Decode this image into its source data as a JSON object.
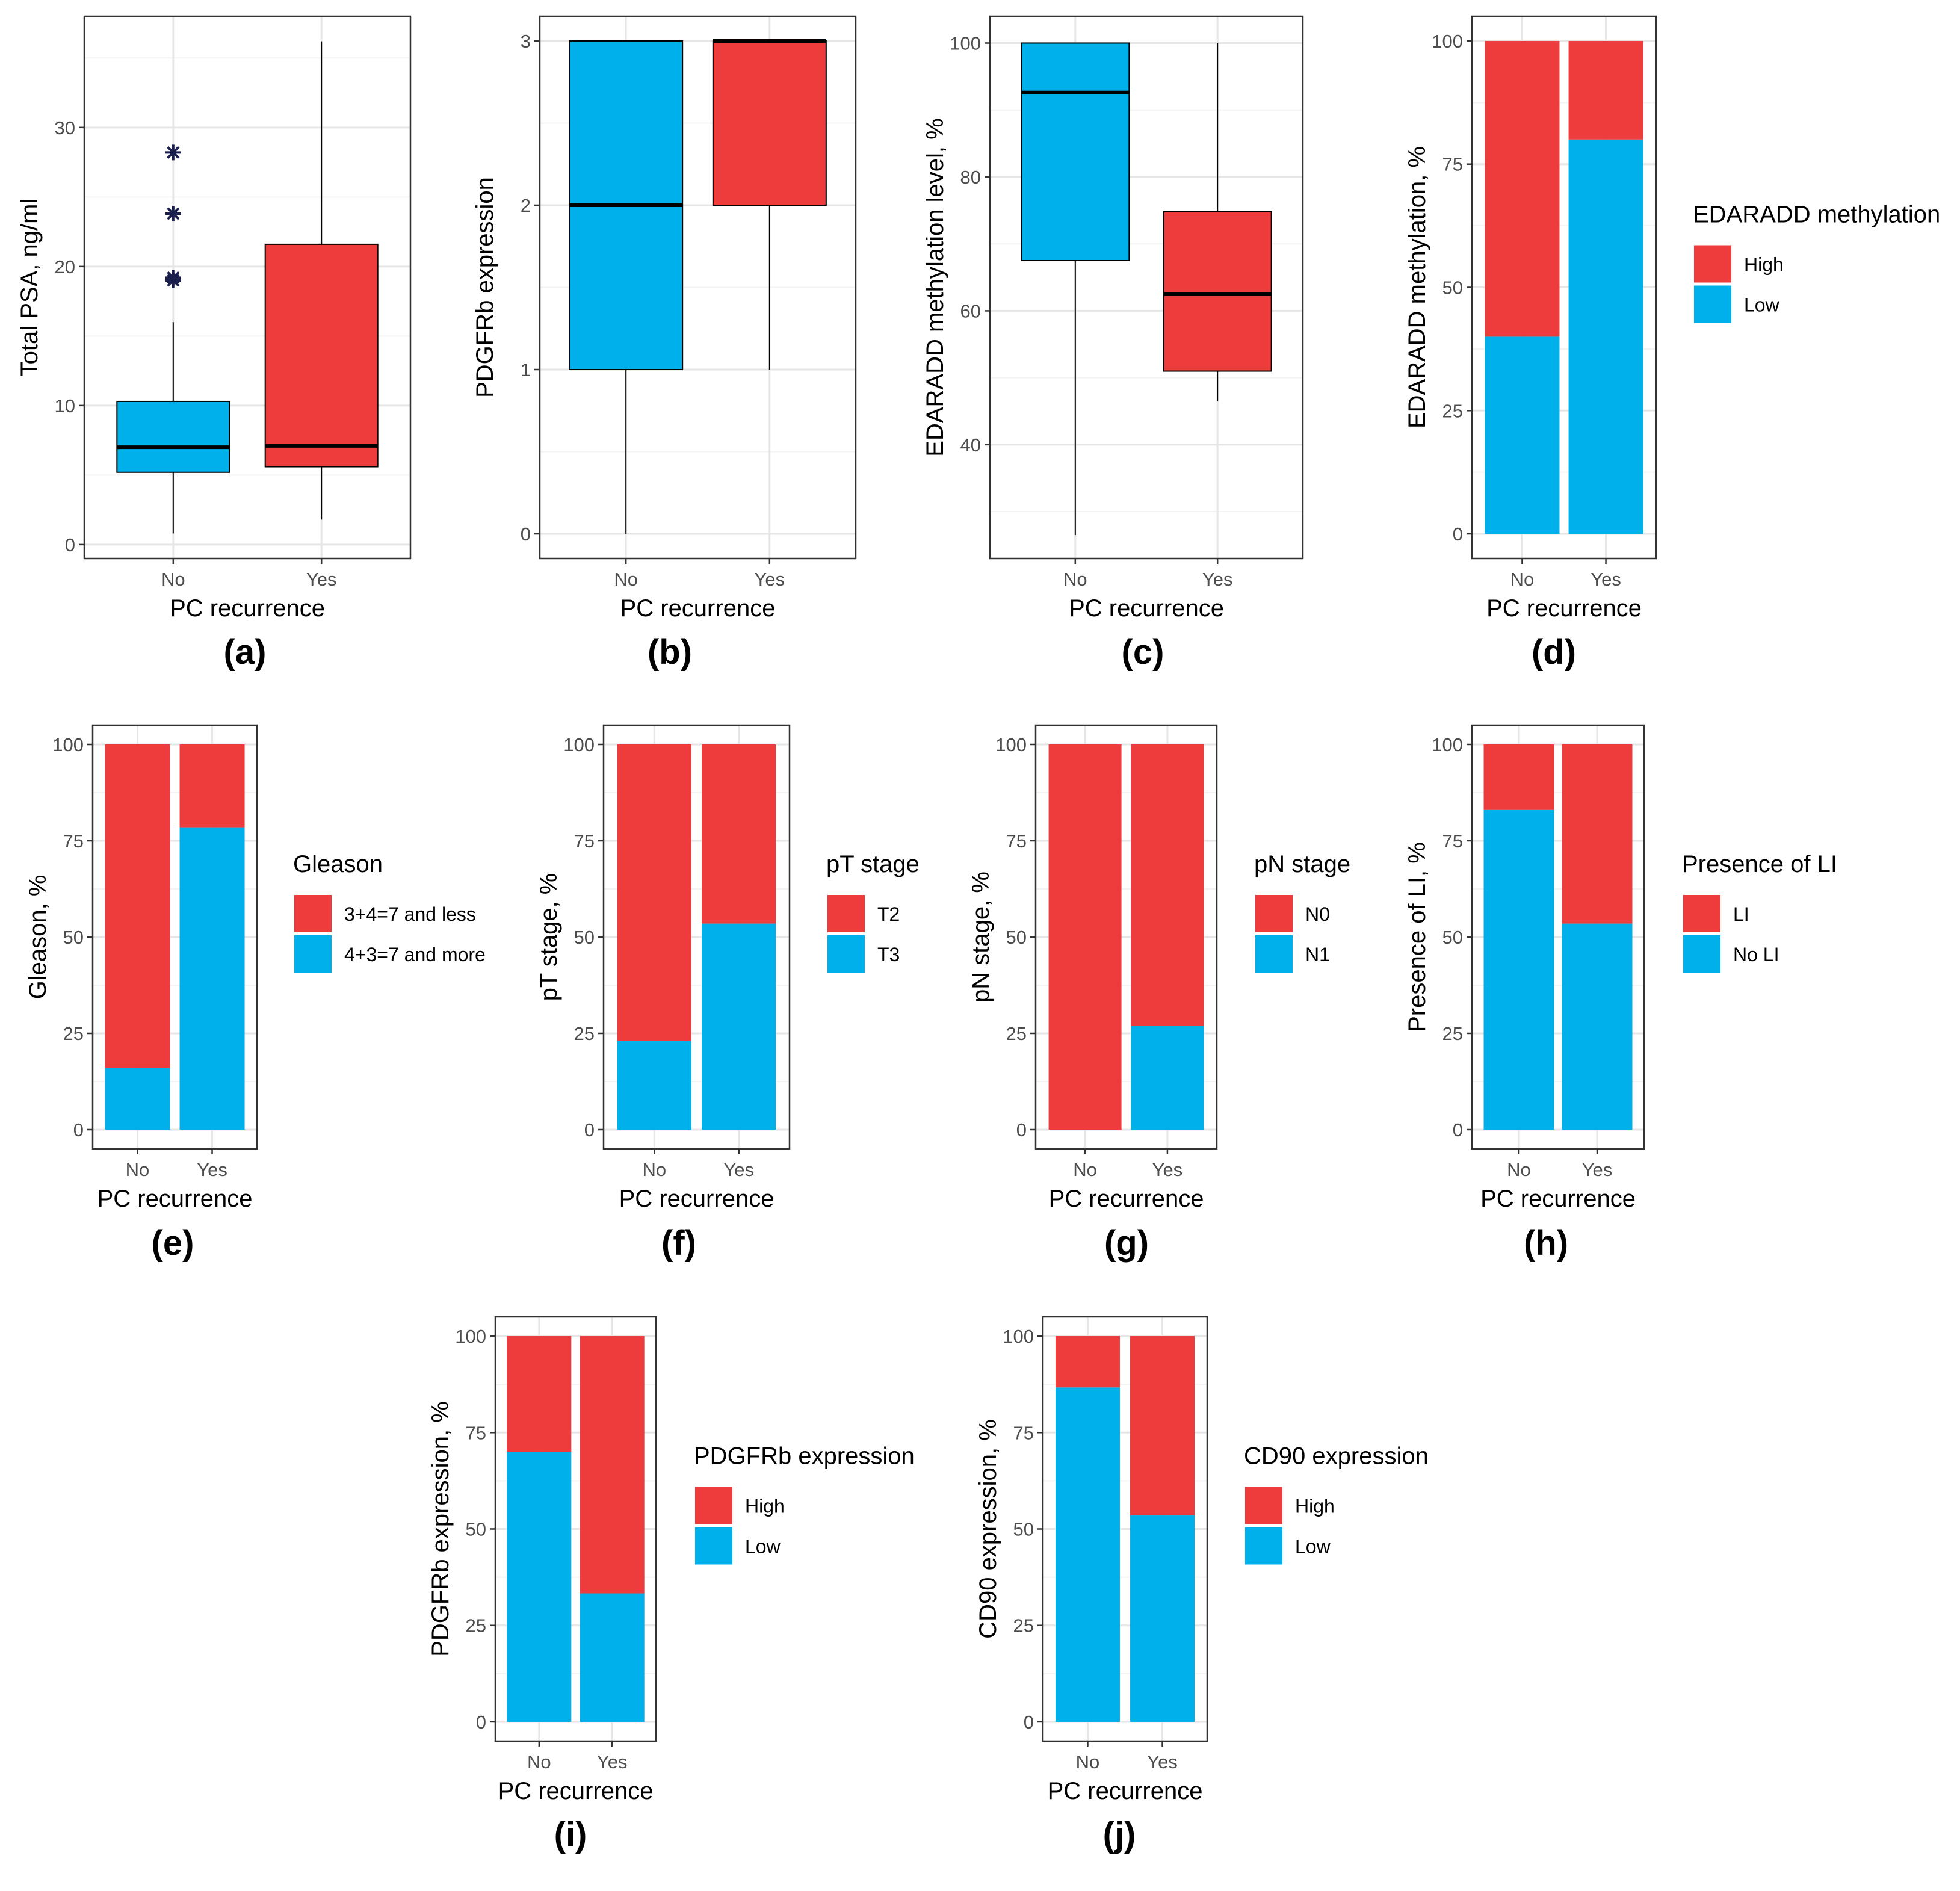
{
  "figure": {
    "categories": [
      "No",
      "Yes"
    ],
    "colors": {
      "high": "#EE3B3B",
      "low": "#00B0EB",
      "box_outline": "#000000",
      "grid_major": "#E6E6E6",
      "grid_minor": "#F3F3F3",
      "panel_border": "#333333",
      "outlier": "#1B1F4E"
    }
  },
  "chart_data": [
    {
      "id": "a",
      "panel_label": "(a)",
      "type": "boxplot",
      "xlabel": "PC recurrence",
      "ylabel": "Total PSA, ng/ml",
      "categories": [
        "No",
        "Yes"
      ],
      "ylim": [
        -1,
        38
      ],
      "yticks": [
        0,
        10,
        20,
        30
      ],
      "boxes": [
        {
          "category": "No",
          "whisker_low": 0.8,
          "q1": 5.2,
          "median": 7.0,
          "q3": 10.3,
          "whisker_high": 16.0,
          "fill": "low",
          "outliers": [
            19.0,
            19.2,
            23.8,
            28.2
          ]
        },
        {
          "category": "Yes",
          "whisker_low": 1.8,
          "q1": 5.6,
          "median": 7.1,
          "q3": 21.6,
          "whisker_high": 36.2,
          "fill": "high",
          "outliers": []
        }
      ]
    },
    {
      "id": "b",
      "panel_label": "(b)",
      "type": "boxplot",
      "xlabel": "PC recurrence",
      "ylabel": "PDGFRb expression",
      "categories": [
        "No",
        "Yes"
      ],
      "ylim": [
        -0.15,
        3.15
      ],
      "yticks": [
        0,
        1,
        2,
        3
      ],
      "boxes": [
        {
          "category": "No",
          "whisker_low": 0,
          "q1": 1,
          "median": 2,
          "q3": 3,
          "whisker_high": 3,
          "fill": "low",
          "outliers": []
        },
        {
          "category": "Yes",
          "whisker_low": 1,
          "q1": 2,
          "median": 3,
          "q3": 3,
          "whisker_high": 3,
          "fill": "high",
          "outliers": []
        }
      ]
    },
    {
      "id": "c",
      "panel_label": "(c)",
      "type": "boxplot",
      "xlabel": "PC recurrence",
      "ylabel": "EDARADD methylation level, %",
      "categories": [
        "No",
        "Yes"
      ],
      "ylim": [
        23,
        104
      ],
      "yticks": [
        40,
        60,
        80,
        100
      ],
      "boxes": [
        {
          "category": "No",
          "whisker_low": 26.5,
          "q1": 67.5,
          "median": 92.6,
          "q3": 100,
          "whisker_high": 100,
          "fill": "low",
          "outliers": []
        },
        {
          "category": "Yes",
          "whisker_low": 46.5,
          "q1": 51.0,
          "median": 62.5,
          "q3": 74.8,
          "whisker_high": 100,
          "fill": "high",
          "outliers": []
        }
      ]
    },
    {
      "id": "d",
      "panel_label": "(d)",
      "type": "bar",
      "stacked": true,
      "xlabel": "PC recurrence",
      "ylabel": "EDARADD methylation, %",
      "categories": [
        "No",
        "Yes"
      ],
      "ylim": [
        0,
        100
      ],
      "yticks": [
        0,
        25,
        50,
        75,
        100
      ],
      "legend_title": "EDARADD methylation",
      "legend_position": "right",
      "series": [
        {
          "name": "High",
          "color": "high",
          "values": [
            60,
            20
          ]
        },
        {
          "name": "Low",
          "color": "low",
          "values": [
            40,
            80
          ]
        }
      ]
    },
    {
      "id": "e",
      "panel_label": "(e)",
      "type": "bar",
      "stacked": true,
      "xlabel": "PC recurrence",
      "ylabel": "Gleason, %",
      "categories": [
        "No",
        "Yes"
      ],
      "ylim": [
        0,
        100
      ],
      "yticks": [
        0,
        25,
        50,
        75,
        100
      ],
      "legend_title": "Gleason",
      "legend_position": "right",
      "series": [
        {
          "name": "3+4=7 and less",
          "color": "high",
          "values": [
            84,
            21.5
          ]
        },
        {
          "name": "4+3=7 and more",
          "color": "low",
          "values": [
            16,
            78.5
          ]
        }
      ]
    },
    {
      "id": "f",
      "panel_label": "(f)",
      "type": "bar",
      "stacked": true,
      "xlabel": "PC recurrence",
      "ylabel": "pT stage, %",
      "categories": [
        "No",
        "Yes"
      ],
      "ylim": [
        0,
        100
      ],
      "yticks": [
        0,
        25,
        50,
        75,
        100
      ],
      "legend_title": "pT stage",
      "legend_position": "right",
      "series": [
        {
          "name": "T2",
          "color": "high",
          "values": [
            77,
            46.5
          ]
        },
        {
          "name": "T3",
          "color": "low",
          "values": [
            23,
            53.5
          ]
        }
      ]
    },
    {
      "id": "g",
      "panel_label": "(g)",
      "type": "bar",
      "stacked": true,
      "xlabel": "PC recurrence",
      "ylabel": "pN stage, %",
      "categories": [
        "No",
        "Yes"
      ],
      "ylim": [
        0,
        100
      ],
      "yticks": [
        0,
        25,
        50,
        75,
        100
      ],
      "legend_title": "pN stage",
      "legend_position": "right",
      "series": [
        {
          "name": "N0",
          "color": "high",
          "values": [
            100,
            73
          ]
        },
        {
          "name": "N1",
          "color": "low",
          "values": [
            0,
            27
          ]
        }
      ]
    },
    {
      "id": "h",
      "panel_label": "(h)",
      "type": "bar",
      "stacked": true,
      "xlabel": "PC recurrence",
      "ylabel": "Presence of LI, %",
      "categories": [
        "No",
        "Yes"
      ],
      "ylim": [
        0,
        100
      ],
      "yticks": [
        0,
        25,
        50,
        75,
        100
      ],
      "legend_title": "Presence of LI",
      "legend_position": "right",
      "series": [
        {
          "name": "LI",
          "color": "high",
          "values": [
            17,
            46.5
          ]
        },
        {
          "name": "No LI",
          "color": "low",
          "values": [
            83,
            53.5
          ]
        }
      ]
    },
    {
      "id": "i",
      "panel_label": "(i)",
      "type": "bar",
      "stacked": true,
      "xlabel": "PC recurrence",
      "ylabel": "PDGFRb expression, %",
      "categories": [
        "No",
        "Yes"
      ],
      "ylim": [
        0,
        100
      ],
      "yticks": [
        0,
        25,
        50,
        75,
        100
      ],
      "legend_title": "PDGFRb expression",
      "legend_position": "right",
      "series": [
        {
          "name": "High",
          "color": "high",
          "values": [
            30,
            66.7
          ]
        },
        {
          "name": "Low",
          "color": "low",
          "values": [
            70,
            33.3
          ]
        }
      ]
    },
    {
      "id": "j",
      "panel_label": "(j)",
      "type": "bar",
      "stacked": true,
      "xlabel": "PC recurrence",
      "ylabel": "CD90 expression, %",
      "categories": [
        "No",
        "Yes"
      ],
      "ylim": [
        0,
        100
      ],
      "yticks": [
        0,
        25,
        50,
        75,
        100
      ],
      "legend_title": "CD90 expression",
      "legend_position": "right",
      "series": [
        {
          "name": "High",
          "color": "high",
          "values": [
            13.3,
            46.5
          ]
        },
        {
          "name": "Low",
          "color": "low",
          "values": [
            86.7,
            53.5
          ]
        }
      ]
    }
  ]
}
